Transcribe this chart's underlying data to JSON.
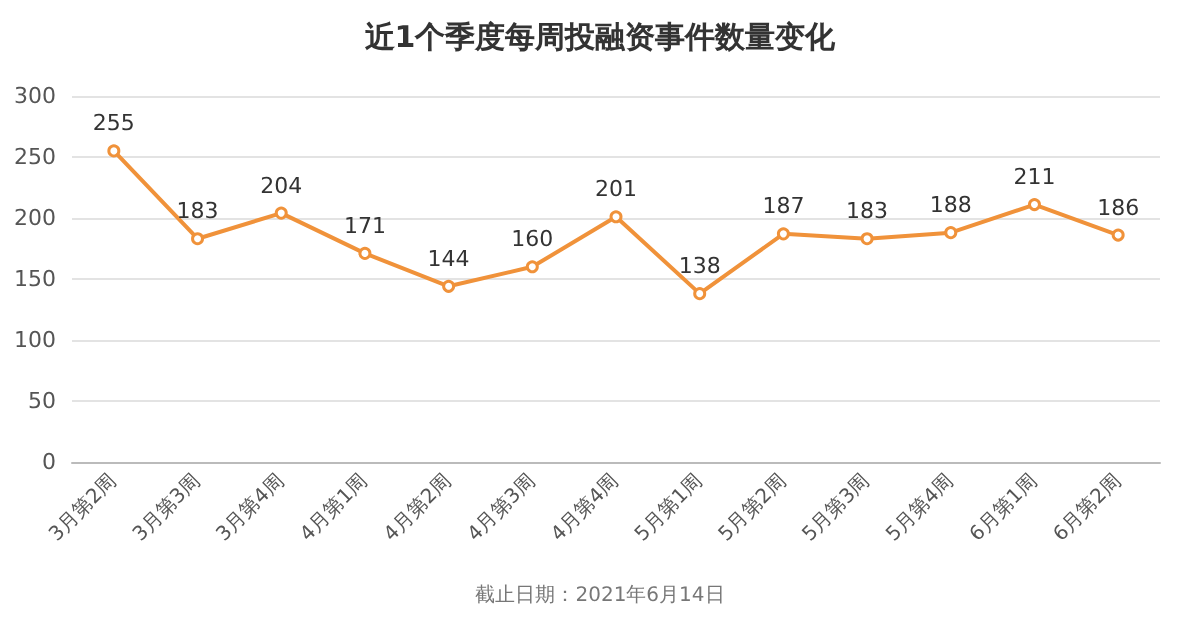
{
  "chart_data": {
    "type": "line",
    "title": "近1个季度每周投融资事件数量变化",
    "categories": [
      "3月第2周",
      "3月第3周",
      "3月第4周",
      "4月第1周",
      "4月第2周",
      "4月第3周",
      "4月第4周",
      "5月第1周",
      "5月第2周",
      "5月第3周",
      "5月第4周",
      "6月第1周",
      "6月第2周"
    ],
    "series": [
      {
        "color": "#f0923a",
        "values": [
          255,
          183,
          204,
          171,
          144,
          160,
          201,
          138,
          187,
          183,
          188,
          211,
          186
        ]
      }
    ],
    "ylim": [
      0,
      300
    ],
    "yticks": [
      0,
      50,
      100,
      150,
      200,
      250,
      300
    ],
    "grid": "y",
    "marker": "circle",
    "line_style": "solid",
    "data_labels": true,
    "annotations": [
      "截止日期：2021年6月14日"
    ]
  }
}
